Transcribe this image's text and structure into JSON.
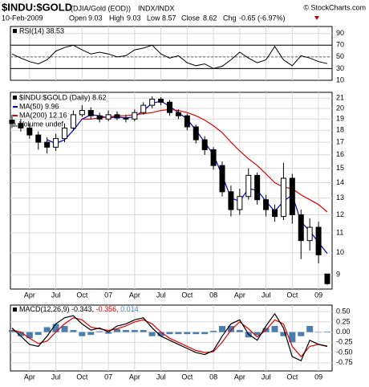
{
  "header": {
    "symbol": "$INDU:$GOLD",
    "description": "(DJIA/Gold (EOD))",
    "exchange": "INDX/INDX",
    "source": "© StockCharts.com",
    "date": "10-Feb-2009",
    "open_label": "Open",
    "open": 9.03,
    "high_label": "High",
    "high": 9.03,
    "low_label": "Low",
    "low": 8.57,
    "close_label": "Close",
    "close": 8.62,
    "chg_label": "Chg",
    "chg": "-0.65 (-6.97%)"
  },
  "chart_data": [
    {
      "type": "line",
      "title": "RSI(14) 38.53",
      "color": "#000000",
      "values": [
        55,
        48,
        42,
        38,
        45,
        60,
        66,
        70,
        62,
        55,
        58,
        55,
        50,
        52,
        62,
        65,
        70,
        55,
        48,
        52,
        40,
        35,
        38,
        30,
        34,
        45,
        58,
        48,
        40,
        45,
        68,
        45,
        35,
        52,
        48,
        42,
        38.53
      ],
      "ylim": [
        10,
        102
      ],
      "yticks": [
        10,
        30,
        50,
        70,
        90
      ],
      "ref_lines": [
        30,
        70
      ],
      "mid_line": 50,
      "grid": true
    },
    {
      "type": "candlestick",
      "log_scale": true,
      "grid": true,
      "categories": [
        null,
        null,
        "Apr",
        null,
        null,
        "Jul",
        null,
        null,
        "Oct",
        null,
        null,
        "07",
        null,
        null,
        "Apr",
        null,
        null,
        "Jul",
        null,
        null,
        "Oct",
        null,
        null,
        "08",
        null,
        null,
        "Apr",
        null,
        null,
        "Jul",
        null,
        null,
        "Oct",
        null,
        null,
        "09",
        null
      ],
      "price_name": "$INDU:$GOLD (Daily) 8.62",
      "volume_name": "Volume undef",
      "up_color": "#ffffff",
      "down_color": "#000000",
      "outline_color": "#000000",
      "open": [
        18.9,
        18.6,
        18.2,
        17.6,
        17.0,
        16.6,
        17.3,
        18.2,
        19.4,
        19.8,
        19.3,
        19.0,
        19.4,
        19.1,
        19.0,
        19.6,
        20.3,
        20.9,
        20.6,
        19.6,
        19.3,
        18.3,
        17.2,
        16.4,
        15.2,
        13.4,
        12.3,
        13.1,
        14.5,
        12.9,
        12.3,
        11.9,
        14.3,
        12.0,
        10.6,
        11.3,
        9.03
      ],
      "high": [
        19.4,
        19.0,
        18.6,
        17.9,
        17.4,
        17.7,
        18.6,
        19.8,
        20.3,
        20.1,
        19.6,
        19.8,
        19.7,
        19.4,
        19.9,
        20.6,
        21.2,
        21.1,
        20.8,
        19.9,
        19.5,
        18.5,
        17.5,
        16.6,
        15.5,
        13.8,
        13.6,
        15.0,
        14.7,
        13.2,
        12.6,
        15.4,
        14.6,
        12.3,
        11.8,
        11.6,
        9.03
      ],
      "low": [
        18.2,
        17.9,
        17.3,
        16.4,
        16.1,
        16.3,
        17.0,
        18.0,
        19.2,
        19.0,
        18.7,
        18.8,
        18.9,
        18.7,
        18.8,
        19.4,
        20.0,
        20.3,
        19.3,
        19.0,
        18.0,
        16.9,
        16.0,
        14.9,
        13.1,
        11.9,
        12.0,
        12.9,
        12.6,
        11.9,
        11.6,
        11.7,
        11.5,
        9.7,
        10.1,
        9.5,
        8.57
      ],
      "close": [
        18.6,
        18.2,
        17.6,
        17.0,
        16.6,
        17.3,
        18.2,
        19.4,
        19.8,
        19.3,
        19.0,
        19.4,
        19.1,
        19.0,
        19.6,
        20.3,
        20.9,
        20.6,
        19.6,
        19.3,
        18.3,
        17.2,
        16.4,
        15.2,
        13.4,
        12.3,
        13.1,
        14.5,
        12.9,
        12.3,
        11.9,
        14.3,
        12.0,
        10.6,
        11.3,
        9.9,
        8.62
      ],
      "series": [
        {
          "name": "MA(50) 9.96",
          "color": "#0000cc",
          "values": [
            null,
            null,
            null,
            null,
            17.2,
            16.9,
            17.2,
            18.0,
            19.0,
            19.4,
            19.3,
            19.1,
            19.2,
            19.1,
            19.2,
            19.8,
            20.5,
            20.7,
            20.2,
            19.6,
            19.0,
            18.0,
            17.0,
            16.0,
            14.5,
            13.0,
            12.8,
            13.6,
            13.5,
            12.8,
            12.2,
            12.8,
            13.2,
            11.6,
            11.1,
            10.5,
            9.96
          ]
        },
        {
          "name": "MA(200) 12.16",
          "color": "#dd0000",
          "values": [
            null,
            null,
            null,
            null,
            null,
            null,
            null,
            null,
            19.0,
            19.0,
            19.1,
            19.2,
            19.3,
            19.3,
            19.4,
            19.5,
            19.6,
            19.8,
            19.9,
            19.8,
            19.6,
            19.3,
            18.9,
            18.4,
            17.8,
            17.0,
            16.3,
            15.7,
            15.2,
            14.6,
            14.0,
            13.7,
            13.6,
            13.2,
            12.9,
            12.6,
            12.16
          ]
        }
      ],
      "ylim": [
        8.4,
        21.6
      ],
      "yticks": [
        9,
        10,
        11,
        12,
        13,
        14,
        15,
        16,
        17,
        18,
        19,
        20,
        21
      ]
    },
    {
      "type": "macd",
      "title": "MACD(12,26,9)",
      "grid": true,
      "categories": [
        null,
        null,
        "Apr",
        null,
        null,
        "Jul",
        null,
        null,
        "Oct",
        null,
        null,
        "07",
        null,
        null,
        "Apr",
        null,
        null,
        "Jul",
        null,
        null,
        "Oct",
        null,
        null,
        "08",
        null,
        null,
        "Apr",
        null,
        null,
        "Jul",
        null,
        null,
        "Oct",
        null,
        null,
        "09",
        null
      ],
      "series": [
        {
          "name": "-0.343,",
          "color": "#000000",
          "values": [
            0.1,
            -0.1,
            -0.3,
            -0.35,
            -0.1,
            0.2,
            0.35,
            0.4,
            0.2,
            0.05,
            0.1,
            0.0,
            0.15,
            0.2,
            0.3,
            0.35,
            0.1,
            -0.1,
            -0.2,
            -0.3,
            -0.4,
            -0.5,
            -0.55,
            -0.45,
            -0.1,
            0.2,
            0.3,
            -0.05,
            -0.2,
            0.15,
            0.45,
            0.1,
            -0.6,
            -0.7,
            -0.2,
            -0.3,
            -0.343
          ]
        },
        {
          "name": "-0.356,",
          "color": "#dd0000",
          "values": [
            0.05,
            0.0,
            -0.15,
            -0.28,
            -0.22,
            0.0,
            0.2,
            0.35,
            0.3,
            0.12,
            0.08,
            0.04,
            0.08,
            0.15,
            0.25,
            0.3,
            0.2,
            0.0,
            -0.15,
            -0.25,
            -0.35,
            -0.45,
            -0.5,
            -0.48,
            -0.25,
            0.05,
            0.25,
            0.08,
            -0.12,
            0.05,
            0.3,
            0.2,
            -0.35,
            -0.6,
            -0.35,
            -0.3,
            -0.356
          ]
        },
        {
          "name": "0.014",
          "color": "#4a7eb0",
          "values": [
            0.05,
            -0.1,
            -0.15,
            -0.07,
            0.12,
            0.2,
            0.15,
            0.05,
            -0.1,
            -0.07,
            0.02,
            -0.04,
            0.07,
            0.05,
            0.05,
            0.05,
            -0.1,
            -0.1,
            -0.05,
            -0.05,
            -0.05,
            -0.05,
            -0.05,
            0.03,
            0.15,
            0.15,
            0.05,
            -0.13,
            -0.08,
            0.1,
            0.15,
            -0.1,
            -0.25,
            -0.1,
            0.15,
            0.0,
            0.014
          ]
        }
      ],
      "ylim": [
        -0.95,
        0.66
      ],
      "yticks": [
        {
          "value": 0.5,
          "label": "0.50"
        },
        {
          "value": 0.25,
          "label": "0.25"
        },
        {
          "value": 0,
          "label": "0.00"
        },
        {
          "value": -0.25,
          "label": "-0.25"
        },
        {
          "value": -0.5,
          "label": "-0.50"
        },
        {
          "value": -0.75,
          "label": "-0.75"
        }
      ]
    }
  ]
}
